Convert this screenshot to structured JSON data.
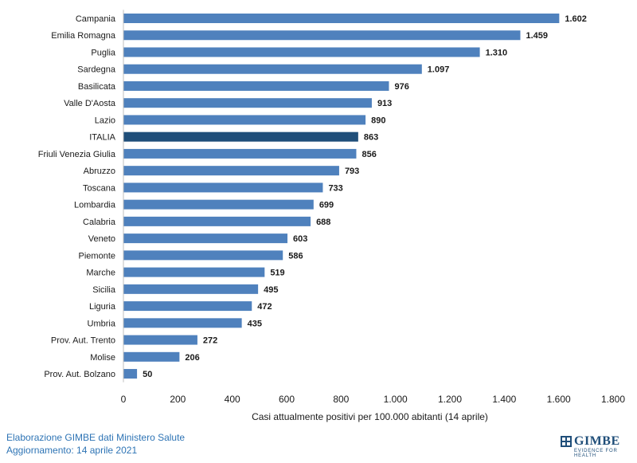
{
  "chart_data": {
    "type": "bar",
    "orientation": "horizontal",
    "categories": [
      "Campania",
      "Emilia Romagna",
      "Puglia",
      "Sardegna",
      "Basilicata",
      "Valle D'Aosta",
      "Lazio",
      "ITALIA",
      "Friuli Venezia Giulia",
      "Abruzzo",
      "Toscana",
      "Lombardia",
      "Calabria",
      "Veneto",
      "Piemonte",
      "Marche",
      "Sicilia",
      "Liguria",
      "Umbria",
      "Prov. Aut. Trento",
      "Molise",
      "Prov. Aut. Bolzano"
    ],
    "values": [
      1602,
      1459,
      1310,
      1097,
      976,
      913,
      890,
      863,
      856,
      793,
      733,
      699,
      688,
      603,
      586,
      519,
      495,
      472,
      435,
      272,
      206,
      50
    ],
    "value_labels": [
      "1.602",
      "1.459",
      "1.310",
      "1.097",
      "976",
      "913",
      "890",
      "863",
      "856",
      "793",
      "733",
      "699",
      "688",
      "603",
      "586",
      "519",
      "495",
      "472",
      "435",
      "272",
      "206",
      "50"
    ],
    "highlight": "ITALIA",
    "xlabel": "Casi attualmente positivi per 100.000 abitanti (14 aprile)",
    "xlim": [
      0,
      1800
    ],
    "xticks": [
      0,
      200,
      400,
      600,
      800,
      1000,
      1200,
      1400,
      1600,
      1800
    ],
    "xtick_labels": [
      "0",
      "200",
      "400",
      "600",
      "800",
      "1.000",
      "1.200",
      "1.400",
      "1.600",
      "1.800"
    ],
    "grid": false,
    "colors": {
      "bar": "#4f81bd",
      "highlight": "#1f4e79"
    }
  },
  "footer": {
    "line1": "Elaborazione GIMBE dati Ministero Salute",
    "line2": "Aggiornamento: 14 aprile 2021"
  },
  "logo": {
    "name": "GIMBE",
    "tagline": "EVIDENCE FOR HEALTH"
  }
}
